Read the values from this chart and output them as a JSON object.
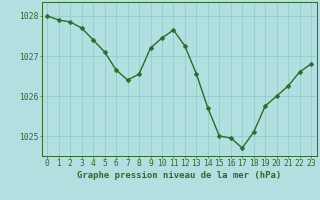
{
  "hours": [
    0,
    1,
    2,
    3,
    4,
    5,
    6,
    7,
    8,
    9,
    10,
    11,
    12,
    13,
    14,
    15,
    16,
    17,
    18,
    19,
    20,
    21,
    22,
    23
  ],
  "pressure": [
    1028.0,
    1027.9,
    1027.85,
    1027.7,
    1027.4,
    1027.1,
    1026.65,
    1026.4,
    1026.55,
    1027.2,
    1027.45,
    1027.65,
    1027.25,
    1026.55,
    1025.7,
    1025.0,
    1024.95,
    1024.7,
    1025.1,
    1025.75,
    1026.0,
    1026.25,
    1026.6,
    1026.8
  ],
  "line_color": "#2d6a2d",
  "marker": "D",
  "marker_size": 2.5,
  "line_width": 1.0,
  "bg_color": "#b2e0e0",
  "plot_bg_color": "#b2e0e0",
  "grid_color": "#8dcaca",
  "ylabel_ticks": [
    1025,
    1026,
    1027,
    1028
  ],
  "ylim": [
    1024.5,
    1028.35
  ],
  "xlim": [
    -0.5,
    23.5
  ],
  "xlabel": "Graphe pression niveau de la mer (hPa)",
  "xlabel_fontsize": 6.5,
  "tick_fontsize": 5.8,
  "axis_color": "#2d6a2d",
  "spine_color": "#2d6a2d"
}
